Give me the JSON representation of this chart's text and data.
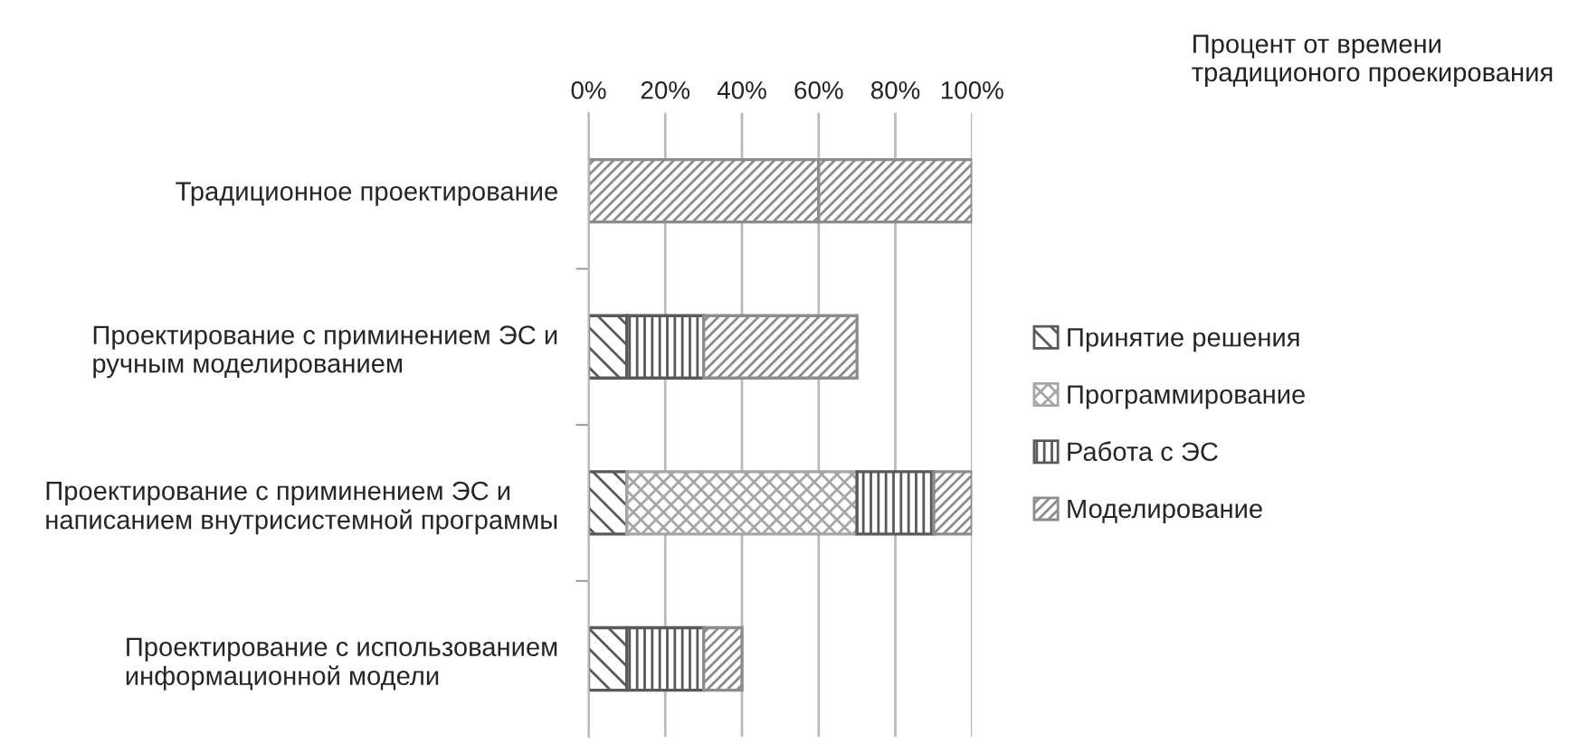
{
  "chart_data": {
    "type": "bar",
    "orientation": "horizontal",
    "stacked": true,
    "annotations": [
      "Процент от времени традиционого проекирования"
    ],
    "categories": [
      "Традиционное проектирование",
      "Проектирование с приминением ЭС и ручным моделированием",
      "Проектирование с приминением ЭС и написанием внутрисистемной программы",
      "Проектирование с использованием информационной модели"
    ],
    "series": [
      {
        "name": "Принятие решения",
        "color": "#595959",
        "values": [
          null,
          10,
          10,
          10
        ]
      },
      {
        "name": "Программирование",
        "color": "#a6a6a6",
        "values": [
          null,
          null,
          60,
          null
        ]
      },
      {
        "name": "Работа с ЭС",
        "color": "#595959",
        "values": [
          null,
          20,
          20,
          20
        ]
      },
      {
        "name": "Моделирование",
        "color": "#8c8c8c",
        "values": [
          60,
          40,
          10,
          10
        ]
      },
      {
        "color": "#8c8c8c",
        "values": [
          40,
          null,
          null,
          null
        ]
      }
    ],
    "xlim": [
      0,
      100
    ],
    "xticks": [
      {
        "value": 0,
        "label": "0%"
      },
      {
        "value": 20,
        "label": "20%"
      },
      {
        "value": 40,
        "label": "40%"
      },
      {
        "value": 60,
        "label": "60%"
      },
      {
        "value": 80,
        "label": "80%"
      },
      {
        "value": 100,
        "label": "100%"
      }
    ],
    "grid": "x",
    "legend": "right"
  }
}
